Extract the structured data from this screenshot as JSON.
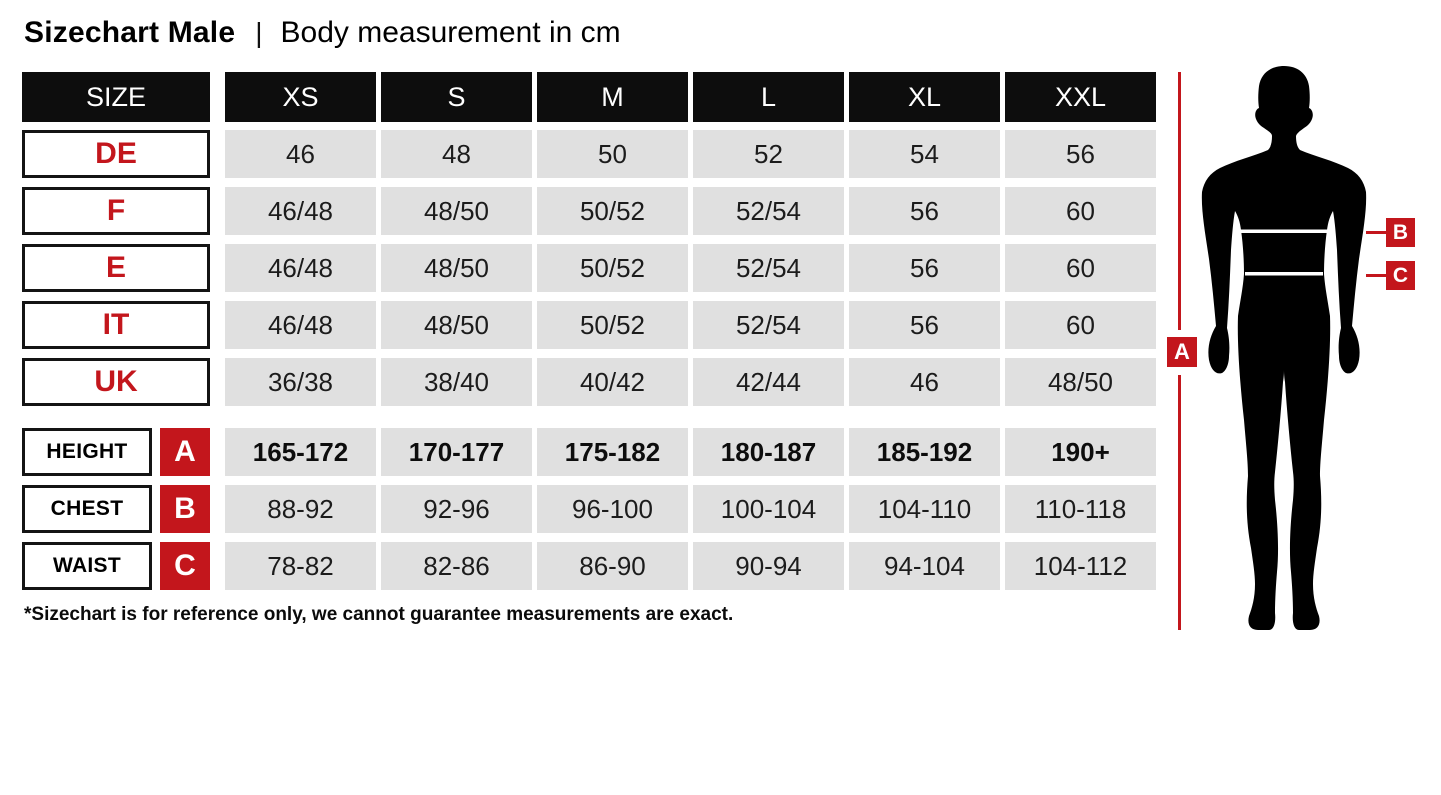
{
  "title": {
    "main": "Sizechart Male",
    "separator": "|",
    "subtitle": "Body measurement in cm"
  },
  "table": {
    "header": [
      "SIZE",
      "XS",
      "S",
      "M",
      "L",
      "XL",
      "XXL"
    ],
    "size_rows": [
      {
        "label": "DE",
        "values": [
          "46",
          "48",
          "50",
          "52",
          "54",
          "56"
        ]
      },
      {
        "label": "F",
        "values": [
          "46/48",
          "48/50",
          "50/52",
          "52/54",
          "56",
          "60"
        ]
      },
      {
        "label": "E",
        "values": [
          "46/48",
          "48/50",
          "50/52",
          "52/54",
          "56",
          "60"
        ]
      },
      {
        "label": "IT",
        "values": [
          "46/48",
          "48/50",
          "50/52",
          "52/54",
          "56",
          "60"
        ]
      },
      {
        "label": "UK",
        "values": [
          "36/38",
          "38/40",
          "40/42",
          "42/44",
          "46",
          "48/50"
        ]
      }
    ],
    "measurement_rows": [
      {
        "label": "HEIGHT",
        "badge": "A",
        "bold": true,
        "values": [
          "165-172",
          "170-177",
          "175-182",
          "180-187",
          "185-192",
          "190+"
        ]
      },
      {
        "label": "CHEST",
        "badge": "B",
        "bold": false,
        "values": [
          "88-92",
          "92-96",
          "96-100",
          "100-104",
          "104-110",
          "110-118"
        ]
      },
      {
        "label": "WAIST",
        "badge": "C",
        "bold": false,
        "values": [
          "78-82",
          "82-86",
          "86-90",
          "90-94",
          "94-104",
          "104-112"
        ]
      }
    ]
  },
  "footnote": "*Sizechart is for reference only, we cannot guarantee measurements are exact.",
  "figure": {
    "height_label": "A",
    "chest_label": "B",
    "waist_label": "C"
  },
  "colors": {
    "accent_red": "#c3161c",
    "cell_gray": "#e0e0e0",
    "header_black": "#0d0d0d"
  }
}
